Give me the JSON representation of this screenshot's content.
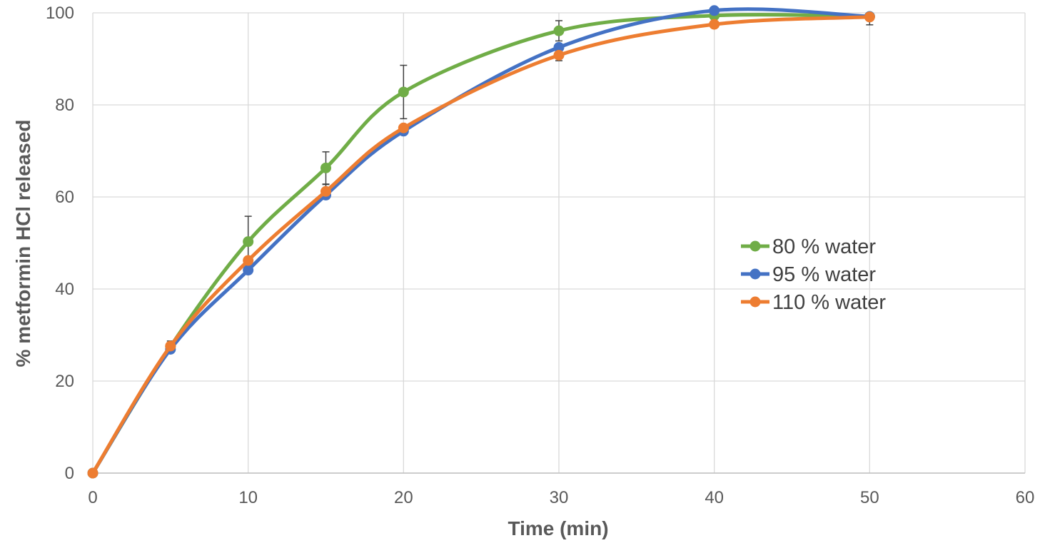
{
  "chart_data": {
    "type": "line",
    "title": "",
    "xlabel": "Time (min)",
    "ylabel": "% metformin HCl released",
    "xlim": [
      0,
      60
    ],
    "ylim": [
      0,
      100
    ],
    "x_ticks": [
      0,
      10,
      20,
      30,
      40,
      50,
      60
    ],
    "y_ticks": [
      0,
      20,
      40,
      60,
      80,
      100
    ],
    "grid": true,
    "smooth": true,
    "legend_position": "right",
    "series": [
      {
        "name": "80 % water",
        "color": "#70ad47",
        "x": [
          0,
          5,
          10,
          15,
          20,
          30,
          40,
          50
        ],
        "y": [
          0,
          27.5,
          50.3,
          66.3,
          82.8,
          96.1,
          99.4,
          99.2
        ],
        "error_plus": [
          0,
          1.2,
          5.5,
          3.5,
          5.8,
          2.2,
          0,
          0
        ],
        "error_minus": [
          0,
          1.2,
          5.5,
          3.5,
          5.8,
          2.2,
          0,
          0
        ]
      },
      {
        "name": "95 % water",
        "color": "#4472c4",
        "x": [
          0,
          5,
          10,
          15,
          20,
          30,
          40,
          50
        ],
        "y": [
          0,
          26.9,
          44.1,
          60.4,
          74.3,
          92.5,
          100.5,
          99.2
        ],
        "error_plus": [
          0,
          0,
          0,
          0,
          0,
          0,
          0,
          0
        ],
        "error_minus": [
          0,
          0,
          0,
          0,
          0,
          0,
          0,
          0
        ]
      },
      {
        "name": "110 % water",
        "color": "#ed7d31",
        "x": [
          0,
          5,
          10,
          15,
          20,
          30,
          40,
          50
        ],
        "y": [
          0,
          27.6,
          46.2,
          61.2,
          75.0,
          90.8,
          97.5,
          99.1
        ],
        "error_plus": [
          0,
          0,
          0,
          1.5,
          0,
          1.2,
          0,
          0
        ],
        "error_minus": [
          0,
          0,
          0,
          1.5,
          0,
          1.2,
          0,
          1.7
        ]
      }
    ]
  }
}
